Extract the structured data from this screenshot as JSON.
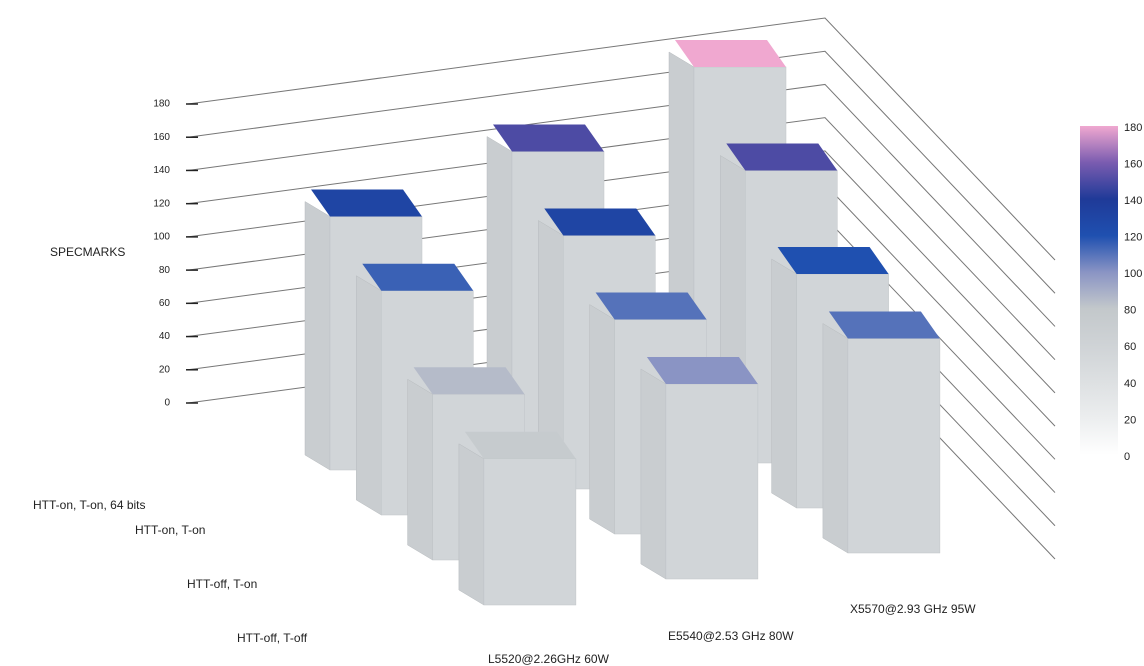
{
  "chart_data": {
    "type": "bar3d",
    "y_label": "SPECMARKS",
    "categories": [
      "L5520@2.26GHz 60W",
      "E5540@2.53 GHz 80W",
      "X5570@2.93 GHz 95W"
    ],
    "series": [
      {
        "name": "HTT-on, T-on, 64 bits",
        "values": [
          130,
          150,
          180
        ]
      },
      {
        "name": "HTT-on, T-on",
        "values": [
          115,
          130,
          150
        ]
      },
      {
        "name": "HTT-off, T-on",
        "values": [
          85,
          110,
          120
        ]
      },
      {
        "name": "HTT-off, T-off",
        "values": [
          75,
          100,
          110
        ]
      }
    ],
    "ylim": [
      0,
      180
    ],
    "yticks": [
      0,
      20,
      40,
      60,
      80,
      100,
      120,
      140,
      160,
      180
    ],
    "grid": true,
    "clim": [
      0,
      180
    ],
    "cticks": [
      0,
      20,
      40,
      60,
      80,
      100,
      120,
      140,
      160,
      180
    ],
    "colorscale": [
      "#ffffff",
      "#eceeef",
      "#dde0e2",
      "#cfd3d6",
      "#c3c8cb",
      "#8a94c4",
      "#1f50b0",
      "#1f3a98",
      "#7a5cb0",
      "#f0a8d0"
    ],
    "side_color": "#c9cdd0"
  }
}
